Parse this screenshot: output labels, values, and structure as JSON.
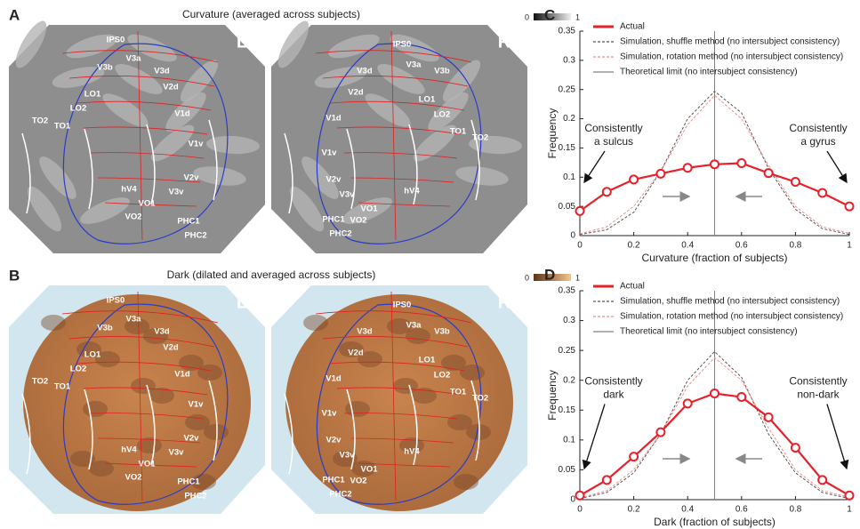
{
  "figure": {
    "panels": [
      {
        "letter": "A",
        "title": "Curvature (averaged across subjects)",
        "colorbar_ticks": [
          0,
          1
        ],
        "hemispheres": [
          {
            "side": "L",
            "labels": [
              "IPS0",
              "V3a",
              "V3b",
              "V3d",
              "V2d",
              "LO1",
              "LO2",
              "V1d",
              "TO2",
              "TO1",
              "V1v",
              "V2v",
              "hV4",
              "V3v",
              "VO1",
              "VO2",
              "PHC1",
              "PHC2"
            ]
          },
          {
            "side": "R",
            "labels": [
              "IPS0",
              "V3a",
              "V3b",
              "V3d",
              "V2d",
              "LO1",
              "LO2",
              "V1d",
              "TO1",
              "TO2",
              "V1v",
              "V2v",
              "V3v",
              "hV4",
              "VO1",
              "VO2",
              "PHC1",
              "PHC2"
            ]
          }
        ]
      },
      {
        "letter": "B",
        "title": "Dark (dilated and averaged across subjects)",
        "colorbar_ticks": [
          0,
          1
        ],
        "hemispheres": [
          {
            "side": "L",
            "labels": [
              "IPS0",
              "V3a",
              "V3b",
              "V3d",
              "V2d",
              "LO1",
              "LO2",
              "V1d",
              "TO2",
              "TO1",
              "V1v",
              "V2v",
              "hV4",
              "V3v",
              "VO1",
              "VO2",
              "PHC1",
              "PHC2"
            ]
          },
          {
            "side": "R",
            "labels": [
              "IPS0",
              "V3a",
              "V3b",
              "V3d",
              "V2d",
              "LO1",
              "LO2",
              "V1d",
              "TO1",
              "TO2",
              "V1v",
              "V2v",
              "V3v",
              "hV4",
              "VO1",
              "VO2",
              "PHC1",
              "PHC2"
            ]
          }
        ]
      }
    ]
  },
  "chart_data": [
    {
      "panel": "C",
      "type": "line",
      "xlabel": "Curvature (fraction of subjects)",
      "ylabel": "Frequency",
      "x": [
        0,
        0.1,
        0.2,
        0.3,
        0.4,
        0.5,
        0.6,
        0.7,
        0.8,
        0.9,
        1
      ],
      "series": [
        {
          "name": "Actual",
          "color": "#e8202a",
          "values": [
            0.042,
            0.075,
            0.096,
            0.106,
            0.116,
            0.122,
            0.124,
            0.107,
            0.092,
            0.073,
            0.05
          ]
        },
        {
          "name": "Simulation, shuffle method (no intersubject consistency)",
          "color": "#555555",
          "dashed": true,
          "values": [
            0.002,
            0.01,
            0.04,
            0.11,
            0.2,
            0.247,
            0.21,
            0.115,
            0.045,
            0.012,
            0.002
          ]
        },
        {
          "name": "Simulation, rotation method (no intersubject consistency)",
          "color": "#f08a8a",
          "dashed": true,
          "values": [
            0.003,
            0.015,
            0.05,
            0.11,
            0.19,
            0.24,
            0.2,
            0.12,
            0.05,
            0.015,
            0.004
          ]
        },
        {
          "name": "Theoretical limit (no intersubject consistency)",
          "color": "#808080",
          "x": [
            0.5,
            0.5
          ],
          "values": [
            0,
            0.35
          ]
        }
      ],
      "xlim": [
        0,
        1
      ],
      "ylim": [
        0,
        0.35
      ],
      "xticks": [
        0,
        0.2,
        0.4,
        0.6,
        0.8,
        1
      ],
      "yticks": [
        0,
        0.05,
        0.1,
        0.15,
        0.2,
        0.25,
        0.3,
        0.35
      ],
      "annotations": [
        {
          "lines": [
            "Consistently",
            "a sulcus"
          ]
        },
        {
          "lines": [
            "Consistently",
            "a gyrus"
          ]
        }
      ]
    },
    {
      "panel": "D",
      "type": "line",
      "xlabel": "Dark (fraction of subjects)",
      "ylabel": "Frequency",
      "x": [
        0,
        0.1,
        0.2,
        0.3,
        0.4,
        0.5,
        0.6,
        0.7,
        0.8,
        0.9,
        1
      ],
      "series": [
        {
          "name": "Actual",
          "color": "#e8202a",
          "values": [
            0.007,
            0.033,
            0.072,
            0.113,
            0.161,
            0.178,
            0.172,
            0.138,
            0.087,
            0.033,
            0.007
          ]
        },
        {
          "name": "Simulation, shuffle method (no intersubject consistency)",
          "color": "#555555",
          "dashed": true,
          "values": [
            0.002,
            0.012,
            0.045,
            0.11,
            0.2,
            0.248,
            0.205,
            0.11,
            0.045,
            0.012,
            0.002
          ]
        },
        {
          "name": "Simulation, rotation method (no intersubject consistency)",
          "color": "#f08a8a",
          "dashed": true,
          "values": [
            0.003,
            0.015,
            0.05,
            0.11,
            0.19,
            0.238,
            0.2,
            0.12,
            0.05,
            0.015,
            0.004
          ]
        },
        {
          "name": "Theoretical limit (no intersubject consistency)",
          "color": "#808080",
          "x": [
            0.5,
            0.5
          ],
          "values": [
            0,
            0.35
          ]
        }
      ],
      "xlim": [
        0,
        1
      ],
      "ylim": [
        0,
        0.35
      ],
      "xticks": [
        0,
        0.2,
        0.4,
        0.6,
        0.8,
        1
      ],
      "yticks": [
        0,
        0.05,
        0.1,
        0.15,
        0.2,
        0.25,
        0.3,
        0.35
      ],
      "annotations": [
        {
          "lines": [
            "Consistently",
            "dark"
          ]
        },
        {
          "lines": [
            "Consistently",
            "non-dark"
          ]
        }
      ]
    }
  ]
}
